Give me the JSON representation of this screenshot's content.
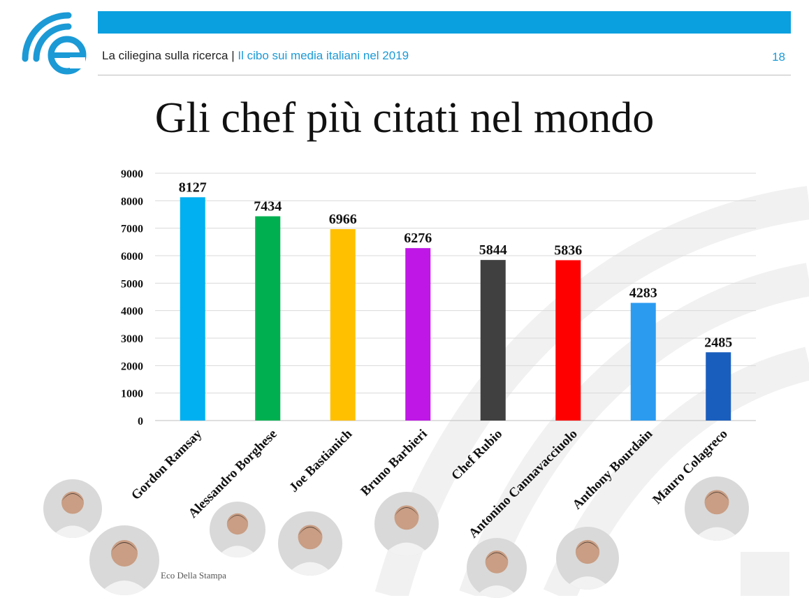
{
  "header": {
    "brand": "La ciliegina sulla ricerca",
    "separator": " | ",
    "subtitle": "Il cibo sui media italiani nel 2019",
    "page_number": "18"
  },
  "title": "Gli chef più citati nel mondo",
  "source": "Eco Della Stampa",
  "logo": {
    "icon": "eco-della-stampa-logo-icon",
    "color": "#1b9ad6"
  },
  "photos": [
    {
      "name": "Gordon Ramsay",
      "icon": "chef-portrait-icon"
    },
    {
      "name": "Alessandro Borghese",
      "icon": "chef-portrait-icon"
    },
    {
      "name": "Joe Bastianich",
      "icon": "chef-portrait-icon"
    },
    {
      "name": "Bruno Barbieri",
      "icon": "chef-portrait-icon"
    },
    {
      "name": "Chef Rubio",
      "icon": "chef-portrait-icon"
    },
    {
      "name": "Antonino Cannavacciuolo",
      "icon": "chef-portrait-icon"
    },
    {
      "name": "Anthony Bourdain",
      "icon": "chef-portrait-icon"
    },
    {
      "name": "Mauro Colagreco",
      "icon": "chef-portrait-icon"
    }
  ],
  "chart_data": {
    "type": "bar",
    "categories": [
      "Gordon Ramsay",
      "Alessandro Borghese",
      "Joe Bastianich",
      "Bruno Barbieri",
      "Chef Rubio",
      "Antonino Cannavacciuolo",
      "Anthony Bourdain",
      "Mauro Colagreco"
    ],
    "values": [
      8127,
      7434,
      6966,
      6276,
      5844,
      5836,
      4283,
      2485
    ],
    "colors": [
      "#00b0f0",
      "#00b050",
      "#ffc000",
      "#bf17e6",
      "#404040",
      "#ff0000",
      "#2b9bf0",
      "#1a5ebd"
    ],
    "ylim": [
      0,
      9000
    ],
    "yticks": [
      "0",
      "1000",
      "2000",
      "3000",
      "4000",
      "5000",
      "6000",
      "7000",
      "8000",
      "9000"
    ],
    "grid": true,
    "data_labels": true,
    "legend": "none"
  }
}
